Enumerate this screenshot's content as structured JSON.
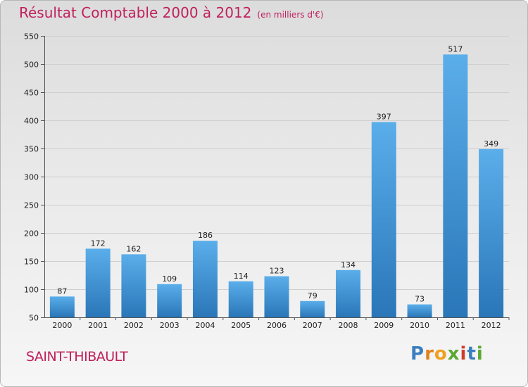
{
  "title": "Résultat Comptable 2000 à 2012",
  "unit": "(en milliers d'€)",
  "commune": "SAINT-THIBAULT",
  "logo": {
    "letters": [
      "P",
      "r",
      "o",
      "x",
      "i",
      "t",
      "i"
    ],
    "colors": [
      "#3a7fc0",
      "#e0821e",
      "#f0a020",
      "#5aa832",
      "#d03c2a",
      "#3a7fc0",
      "#5aa832"
    ]
  },
  "colors": {
    "title": "#c0205d",
    "bar_top": "#5aaeea",
    "bar_bottom": "#2a76b8"
  },
  "chart_data": {
    "type": "bar",
    "title": "Résultat Comptable 2000 à 2012",
    "ylabel": "en milliers d'€",
    "xlabel": "",
    "categories": [
      "2000",
      "2001",
      "2002",
      "2003",
      "2004",
      "2005",
      "2006",
      "2007",
      "2008",
      "2009",
      "2010",
      "2011",
      "2012"
    ],
    "values": [
      87,
      172,
      162,
      109,
      186,
      114,
      123,
      79,
      134,
      397,
      73,
      517,
      349
    ],
    "ylim": [
      50,
      550
    ],
    "yticks": [
      50,
      100,
      150,
      200,
      250,
      300,
      350,
      400,
      450,
      500,
      550
    ],
    "grid": true,
    "legend": "none"
  }
}
